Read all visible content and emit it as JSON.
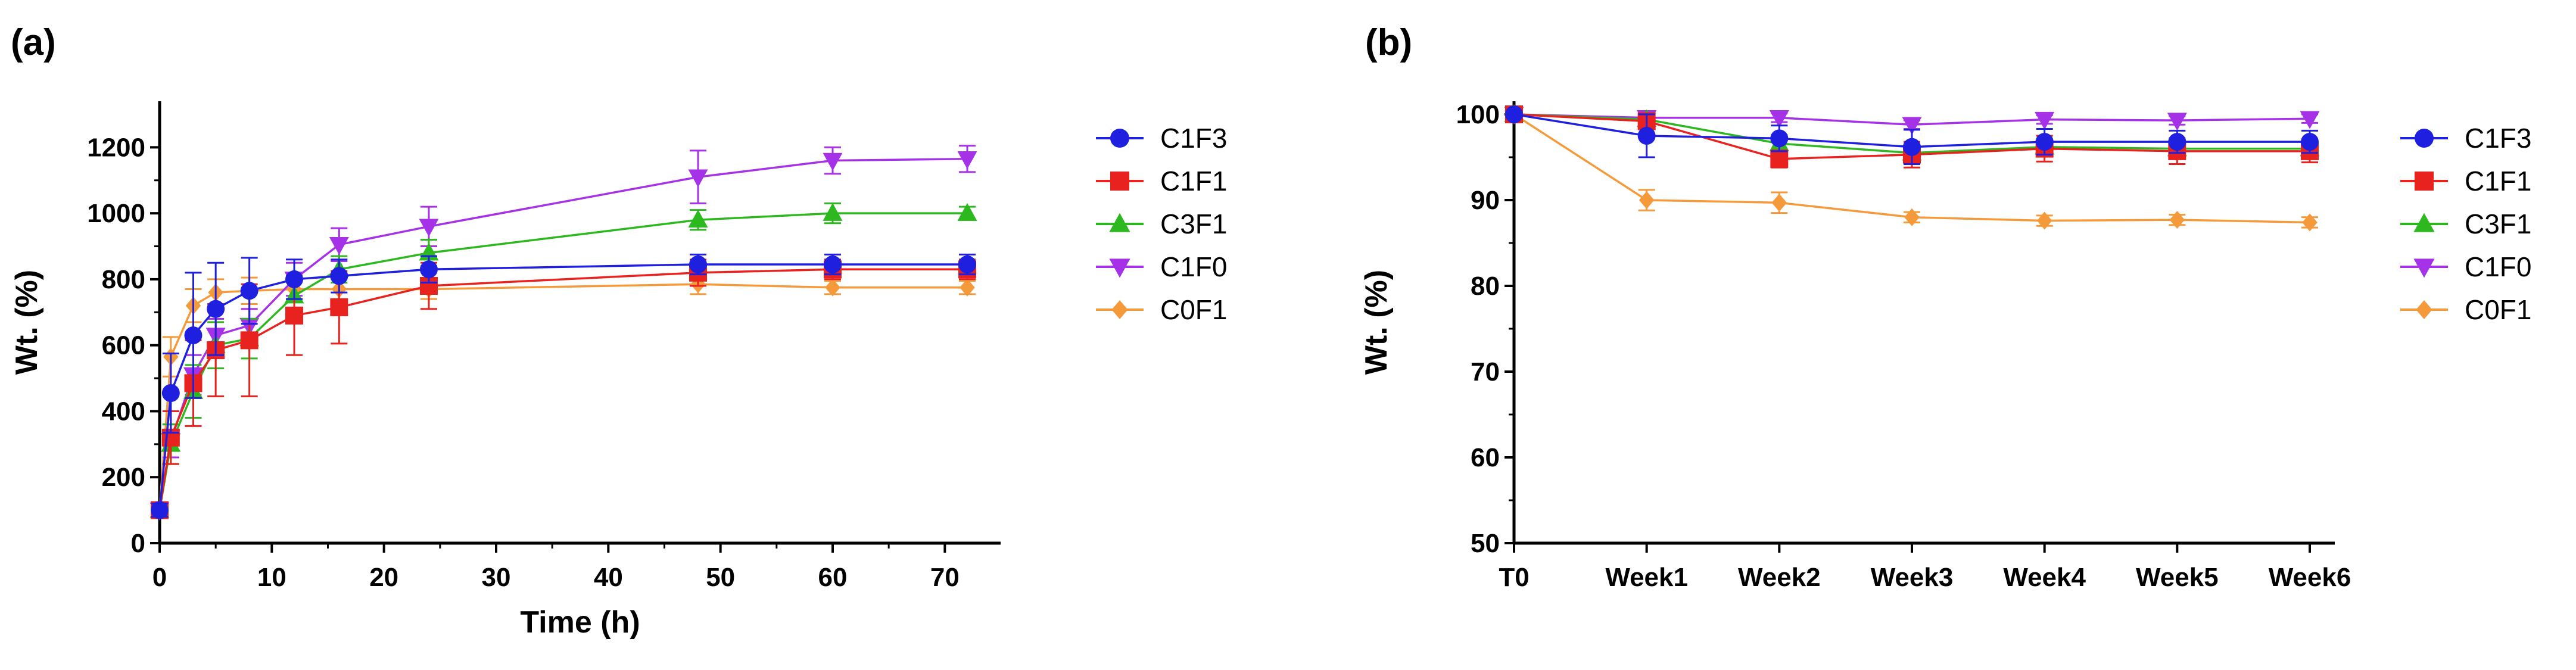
{
  "figure_labels": [
    "(a)",
    "(b)"
  ],
  "series_colors": {
    "C1F3": "#1f1fe0",
    "C1F1": "#e8231f",
    "C3F1": "#2db81f",
    "C1F0": "#a532e6",
    "C0F1": "#f59a3a"
  },
  "series_markers": {
    "C1F3": "circle-icon",
    "C1F1": "square-icon",
    "C3F1": "triangle-up-icon",
    "C1F0": "triangle-down-icon",
    "C0F1": "diamond-icon"
  },
  "chart_data": [
    {
      "type": "line",
      "panel_label": "(a)",
      "title": "",
      "xlabel": "Time (h)",
      "ylabel": "Wt. (%)",
      "xlim": [
        0,
        72
      ],
      "ylim": [
        0,
        1300
      ],
      "xticks": [
        0,
        10,
        20,
        30,
        40,
        50,
        60,
        70
      ],
      "yticks": [
        0,
        200,
        400,
        600,
        800,
        1000,
        1200
      ],
      "legend": "right",
      "grid": false,
      "series": [
        {
          "name": "C1F3",
          "x": [
            0,
            1,
            3,
            5,
            8,
            12,
            16,
            24,
            48,
            60,
            72
          ],
          "values": [
            100,
            455,
            630,
            710,
            765,
            800,
            810,
            830,
            845,
            845,
            845
          ],
          "errors": [
            20,
            120,
            190,
            140,
            100,
            60,
            50,
            40,
            30,
            30,
            30
          ]
        },
        {
          "name": "C1F1",
          "x": [
            0,
            1,
            3,
            5,
            8,
            12,
            16,
            24,
            48,
            60,
            72
          ],
          "values": [
            100,
            320,
            485,
            585,
            615,
            690,
            715,
            780,
            820,
            830,
            830
          ],
          "errors": [
            20,
            80,
            130,
            140,
            170,
            120,
            110,
            70,
            40,
            30,
            30
          ]
        },
        {
          "name": "C3F1",
          "x": [
            0,
            1,
            3,
            5,
            8,
            12,
            16,
            24,
            48,
            60,
            72
          ],
          "values": [
            100,
            300,
            460,
            600,
            620,
            750,
            830,
            880,
            980,
            1000,
            1000
          ],
          "errors": [
            20,
            60,
            80,
            70,
            60,
            50,
            40,
            40,
            30,
            30,
            20
          ]
        },
        {
          "name": "C1F0",
          "x": [
            0,
            1,
            3,
            5,
            8,
            12,
            16,
            24,
            48,
            60,
            72
          ],
          "values": [
            100,
            310,
            510,
            630,
            660,
            800,
            905,
            960,
            1110,
            1160,
            1165
          ],
          "errors": [
            20,
            50,
            60,
            50,
            50,
            50,
            50,
            60,
            80,
            40,
            40
          ]
        },
        {
          "name": "C0F1",
          "x": [
            0,
            1,
            3,
            5,
            8,
            12,
            16,
            24,
            48,
            60,
            72
          ],
          "values": [
            100,
            565,
            720,
            760,
            765,
            770,
            770,
            770,
            785,
            775,
            775
          ],
          "errors": [
            15,
            60,
            50,
            40,
            40,
            30,
            30,
            30,
            30,
            20,
            20
          ]
        }
      ]
    },
    {
      "type": "line",
      "panel_label": "(b)",
      "title": "",
      "xlabel": "",
      "ylabel": "Wt. (%)",
      "categories": [
        "T0",
        "Week1",
        "Week2",
        "Week3",
        "Week4",
        "Week5",
        "Week6"
      ],
      "ylim": [
        50,
        100
      ],
      "yticks": [
        50,
        60,
        70,
        80,
        90,
        100
      ],
      "legend": "right",
      "grid": false,
      "series": [
        {
          "name": "C1F3",
          "values": [
            100,
            97.5,
            97.2,
            96.2,
            96.8,
            96.8,
            96.8
          ],
          "errors": [
            0.3,
            2.5,
            1.5,
            2.0,
            1.5,
            1.3,
            1.3
          ]
        },
        {
          "name": "C1F1",
          "values": [
            100,
            99.2,
            94.8,
            95.3,
            96.0,
            95.7,
            95.7
          ],
          "errors": [
            0.3,
            0.8,
            1.0,
            1.5,
            1.5,
            1.5,
            1.3
          ]
        },
        {
          "name": "C3F1",
          "values": [
            100,
            99.4,
            96.6,
            95.5,
            96.2,
            96.0,
            96.0
          ],
          "errors": [
            0.3,
            0.5,
            1.0,
            1.0,
            1.0,
            1.0,
            1.0
          ]
        },
        {
          "name": "C1F0",
          "values": [
            100,
            99.6,
            99.6,
            98.8,
            99.4,
            99.3,
            99.5
          ],
          "errors": [
            0.3,
            0.4,
            0.5,
            0.5,
            0.5,
            0.5,
            0.5
          ]
        },
        {
          "name": "C0F1",
          "values": [
            100,
            90.0,
            89.7,
            88.0,
            87.6,
            87.7,
            87.4
          ],
          "errors": [
            0.3,
            1.2,
            1.2,
            0.6,
            0.6,
            0.6,
            0.6
          ]
        }
      ]
    }
  ]
}
